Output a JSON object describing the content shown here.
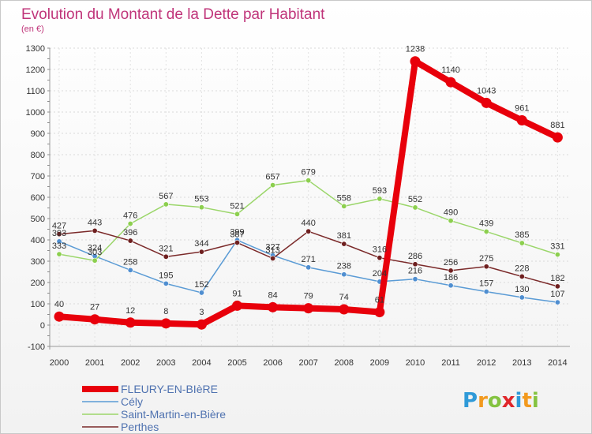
{
  "header": {
    "title": "Evolution du Montant de la Dette par Habitant",
    "subtitle": "(en €)"
  },
  "brand": {
    "text": "Proxiti",
    "letters": [
      {
        "ch": "P",
        "color": "#2f9ad8"
      },
      {
        "ch": "r",
        "color": "#f29a1f"
      },
      {
        "ch": "o",
        "color": "#84c341"
      },
      {
        "ch": "x",
        "color": "#e0262a"
      },
      {
        "ch": "i",
        "color": "#2f9ad8"
      },
      {
        "ch": "t",
        "color": "#f29a1f"
      },
      {
        "ch": "i",
        "color": "#84c341"
      }
    ]
  },
  "chart_data": {
    "type": "line",
    "ylim": [
      -100,
      1300
    ],
    "yticks": [
      -100,
      0,
      100,
      200,
      300,
      400,
      500,
      600,
      700,
      800,
      900,
      1000,
      1100,
      1200,
      1300
    ],
    "x": [
      "2000",
      "2001",
      "2002",
      "2003",
      "2004",
      "2005",
      "2006",
      "2007",
      "2008",
      "2009",
      "2010",
      "2011",
      "2012",
      "2013",
      "2014"
    ],
    "grid": true,
    "legend_position": "bottom-left",
    "series": [
      {
        "name": "FLEURY-EN-BIèRE",
        "color": "#e8000b",
        "marker_color": "#e8000b",
        "width": "bold",
        "values": [
          40,
          27,
          12,
          8,
          3,
          91,
          84,
          79,
          74,
          61,
          1238,
          1140,
          1043,
          961,
          881
        ]
      },
      {
        "name": "Cély",
        "color": "#5a9bd5",
        "marker_color": "#4f8ed0",
        "width": "thin",
        "values": [
          393,
          324,
          258,
          195,
          152,
          399,
          327,
          271,
          238,
          204,
          216,
          186,
          157,
          130,
          107
        ]
      },
      {
        "name": "Saint-Martin-en-Bière",
        "color": "#9bd66a",
        "marker_color": "#8ccf4e",
        "width": "thin",
        "values": [
          333,
          303,
          476,
          567,
          553,
          521,
          657,
          679,
          558,
          593,
          552,
          490,
          439,
          385,
          331
        ]
      },
      {
        "name": "Perthes",
        "color": "#7b2a2a",
        "marker_color": "#6e1f1f",
        "width": "thin",
        "values": [
          427,
          443,
          396,
          321,
          344,
          387,
          313,
          440,
          381,
          316,
          286,
          256,
          275,
          228,
          182
        ]
      }
    ]
  }
}
